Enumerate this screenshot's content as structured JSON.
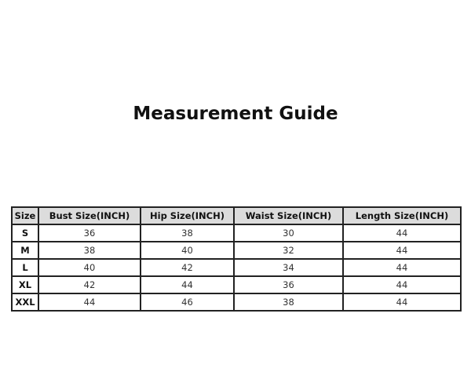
{
  "title": "Measurement Guide",
  "table": {
    "headers": [
      "Size",
      "Bust Size(INCH)",
      "Hip Size(INCH)",
      "Waist Size(INCH)",
      "Length Size(INCH)"
    ],
    "rows": [
      [
        "S",
        "36",
        "38",
        "30",
        "44"
      ],
      [
        "M",
        "38",
        "40",
        "32",
        "44"
      ],
      [
        "L",
        "40",
        "42",
        "34",
        "44"
      ],
      [
        "XL",
        "42",
        "44",
        "36",
        "44"
      ],
      [
        "XXL",
        "44",
        "46",
        "38",
        "44"
      ]
    ]
  }
}
